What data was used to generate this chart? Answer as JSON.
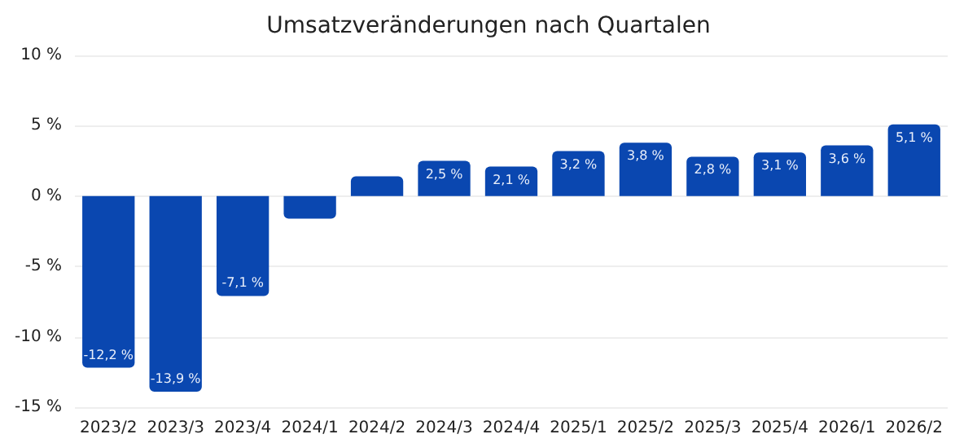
{
  "chart_data": {
    "type": "bar",
    "title": "Umsatzveränderungen nach Quartalen",
    "categories": [
      "2023/2",
      "2023/3",
      "2023/4",
      "2024/1",
      "2024/2",
      "2024/3",
      "2024/4",
      "2025/1",
      "2025/2",
      "2025/3",
      "2025/4",
      "2026/1",
      "2026/2"
    ],
    "values": [
      -12.2,
      -13.9,
      -7.1,
      -1.6,
      1.4,
      2.5,
      2.1,
      3.2,
      3.8,
      2.8,
      3.1,
      3.6,
      5.1
    ],
    "value_labels": [
      "-12,2 %",
      "-13,9 %",
      "-7,1 %",
      null,
      null,
      "2,5 %",
      "2,1 %",
      "3,2 %",
      "3,8 %",
      "2,8 %",
      "3,1 %",
      "3,6 %",
      "5,1 %"
    ],
    "color": "#0a47b0",
    "ylim": [
      -15,
      10
    ],
    "yticks": [
      {
        "value": -15,
        "label": "-15 %"
      },
      {
        "value": -10,
        "label": "-10 %"
      },
      {
        "value": -5,
        "label": "-5 %"
      },
      {
        "value": 0,
        "label": "0 %"
      },
      {
        "value": 5,
        "label": "5 %"
      },
      {
        "value": 10,
        "label": "10 %"
      }
    ],
    "grid": "y"
  }
}
